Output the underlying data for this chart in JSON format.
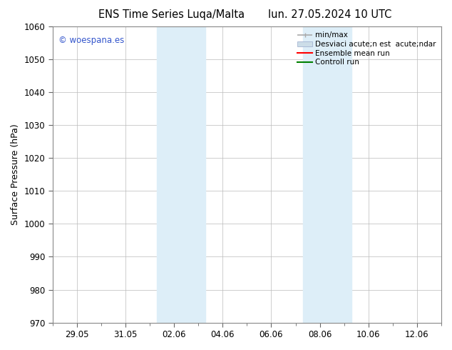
{
  "title_left": "ENS Time Series Luqa/Malta",
  "title_right": "lun. 27.05.2024 10 UTC",
  "ylabel": "Surface Pressure (hPa)",
  "ylim": [
    970,
    1060
  ],
  "yticks": [
    970,
    980,
    990,
    1000,
    1010,
    1020,
    1030,
    1040,
    1050,
    1060
  ],
  "xtick_labels": [
    "29.05",
    "31.05",
    "02.06",
    "04.06",
    "06.06",
    "08.06",
    "10.06",
    "12.06"
  ],
  "xtick_positions": [
    0,
    2,
    4,
    6,
    8,
    10,
    12,
    14
  ],
  "shaded_bands": [
    {
      "x_start": 3.3,
      "x_end": 5.3,
      "color": "#ddeef8"
    },
    {
      "x_start": 9.3,
      "x_end": 11.3,
      "color": "#ddeef8"
    }
  ],
  "watermark_text": "© woespana.es",
  "watermark_color": "#3355cc",
  "legend_entries": [
    {
      "label": "min/max",
      "color": "#aaaaaa",
      "linewidth": 1.2
    },
    {
      "label": "Desviaci acute;n est  acute;ndar",
      "color": "#ccdde8",
      "linewidth": 8
    },
    {
      "label": "Ensemble mean run",
      "color": "red",
      "linewidth": 1.5
    },
    {
      "label": "Controll run",
      "color": "green",
      "linewidth": 1.5
    }
  ],
  "bg_color": "#ffffff",
  "grid_color": "#bbbbbb",
  "title_fontsize": 10.5,
  "label_fontsize": 9,
  "tick_fontsize": 8.5,
  "legend_fontsize": 7.5
}
